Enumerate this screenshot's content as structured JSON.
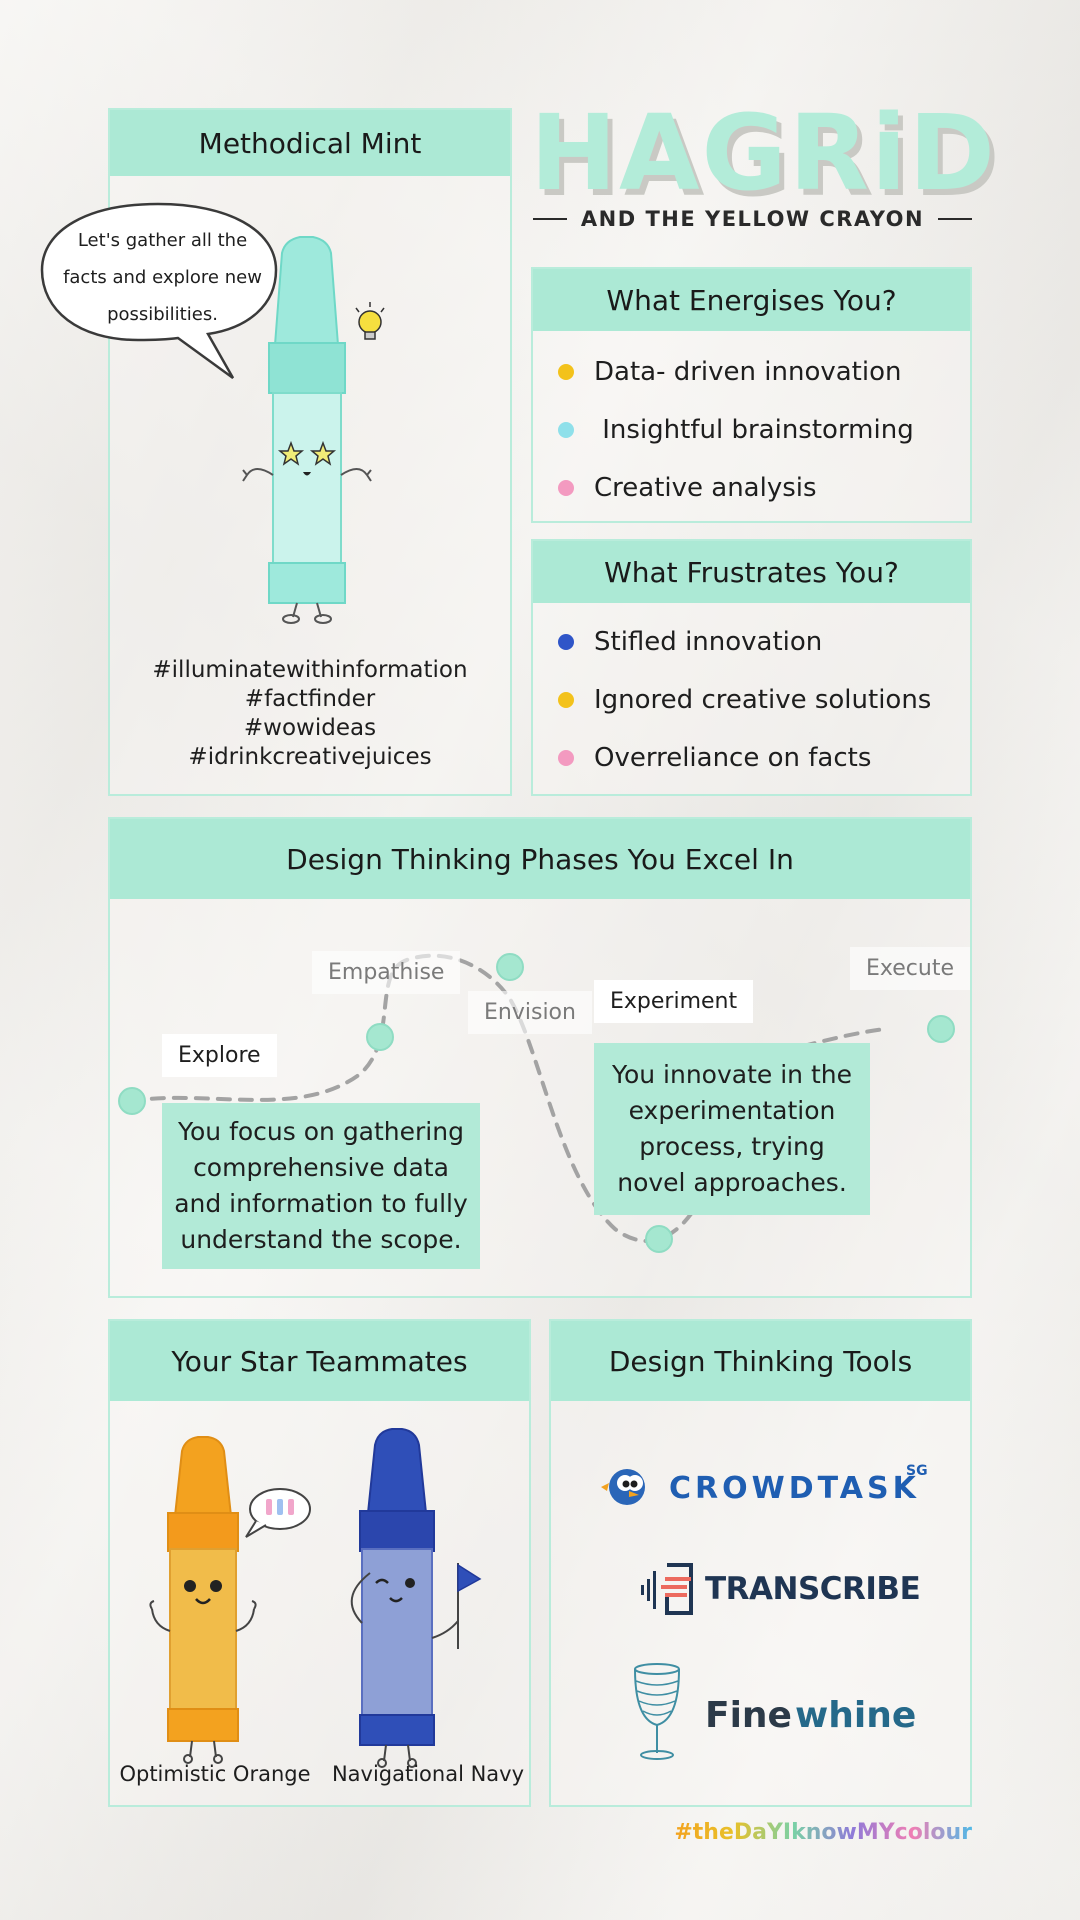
{
  "title": {
    "main": "HAGRiD",
    "sub": "AND THE YELLOW CRAYON"
  },
  "persona": {
    "name": "Methodical Mint",
    "speech": "Let's gather all the facts and explore new possibilities.",
    "hashtags": [
      "#illuminatewithinformation",
      "#factfinder",
      "#wowideas",
      "#idrinkcreativejuices"
    ]
  },
  "energises": {
    "heading": "What Energises You?",
    "items": [
      {
        "text": "Data- driven innovation",
        "color": "#f3c21b"
      },
      {
        "text": " Insightful brainstorming",
        "color": "#8fe0ea"
      },
      {
        "text": "Creative analysis",
        "color": "#f39ac0"
      }
    ]
  },
  "frustrates": {
    "heading": "What Frustrates You?",
    "items": [
      {
        "text": "Stifled innovation",
        "color": "#2f55c8"
      },
      {
        "text": "Ignored creative solutions",
        "color": "#f3c21b"
      },
      {
        "text": "Overreliance on facts",
        "color": "#f39ac0"
      }
    ]
  },
  "phases": {
    "heading": "Design Thinking Phases You Excel In",
    "labels": {
      "explore": "Explore",
      "empathise": "Empathise",
      "envision": "Envision",
      "experiment": "Experiment",
      "execute": "Execute"
    },
    "notes": {
      "explore": "You focus on gathering comprehensive data and information to fully understand the scope.",
      "experiment": "You innovate in the experimentation process, trying novel approaches."
    }
  },
  "teammates": {
    "heading": "Your Star Teammates",
    "members": [
      {
        "name": "Optimistic Orange",
        "color": "#f3a21f"
      },
      {
        "name": "Navigational Navy",
        "color": "#2f4fb8"
      }
    ]
  },
  "tools": {
    "heading": "Design Thinking Tools",
    "crowdtask": {
      "name": "CROWDTASK",
      "sup": "SG"
    },
    "transcribe": {
      "name": "TRANSCRIBE"
    },
    "finewhine": {
      "word1": "Fine",
      "word2": "whine"
    }
  },
  "footer": {
    "hashtag": "#theDaYIknowMYcolour"
  },
  "colors": {
    "mint": "#ace9d5",
    "mint_border": "#b9ecdb",
    "crayon_mint": "#9ee9dc"
  }
}
